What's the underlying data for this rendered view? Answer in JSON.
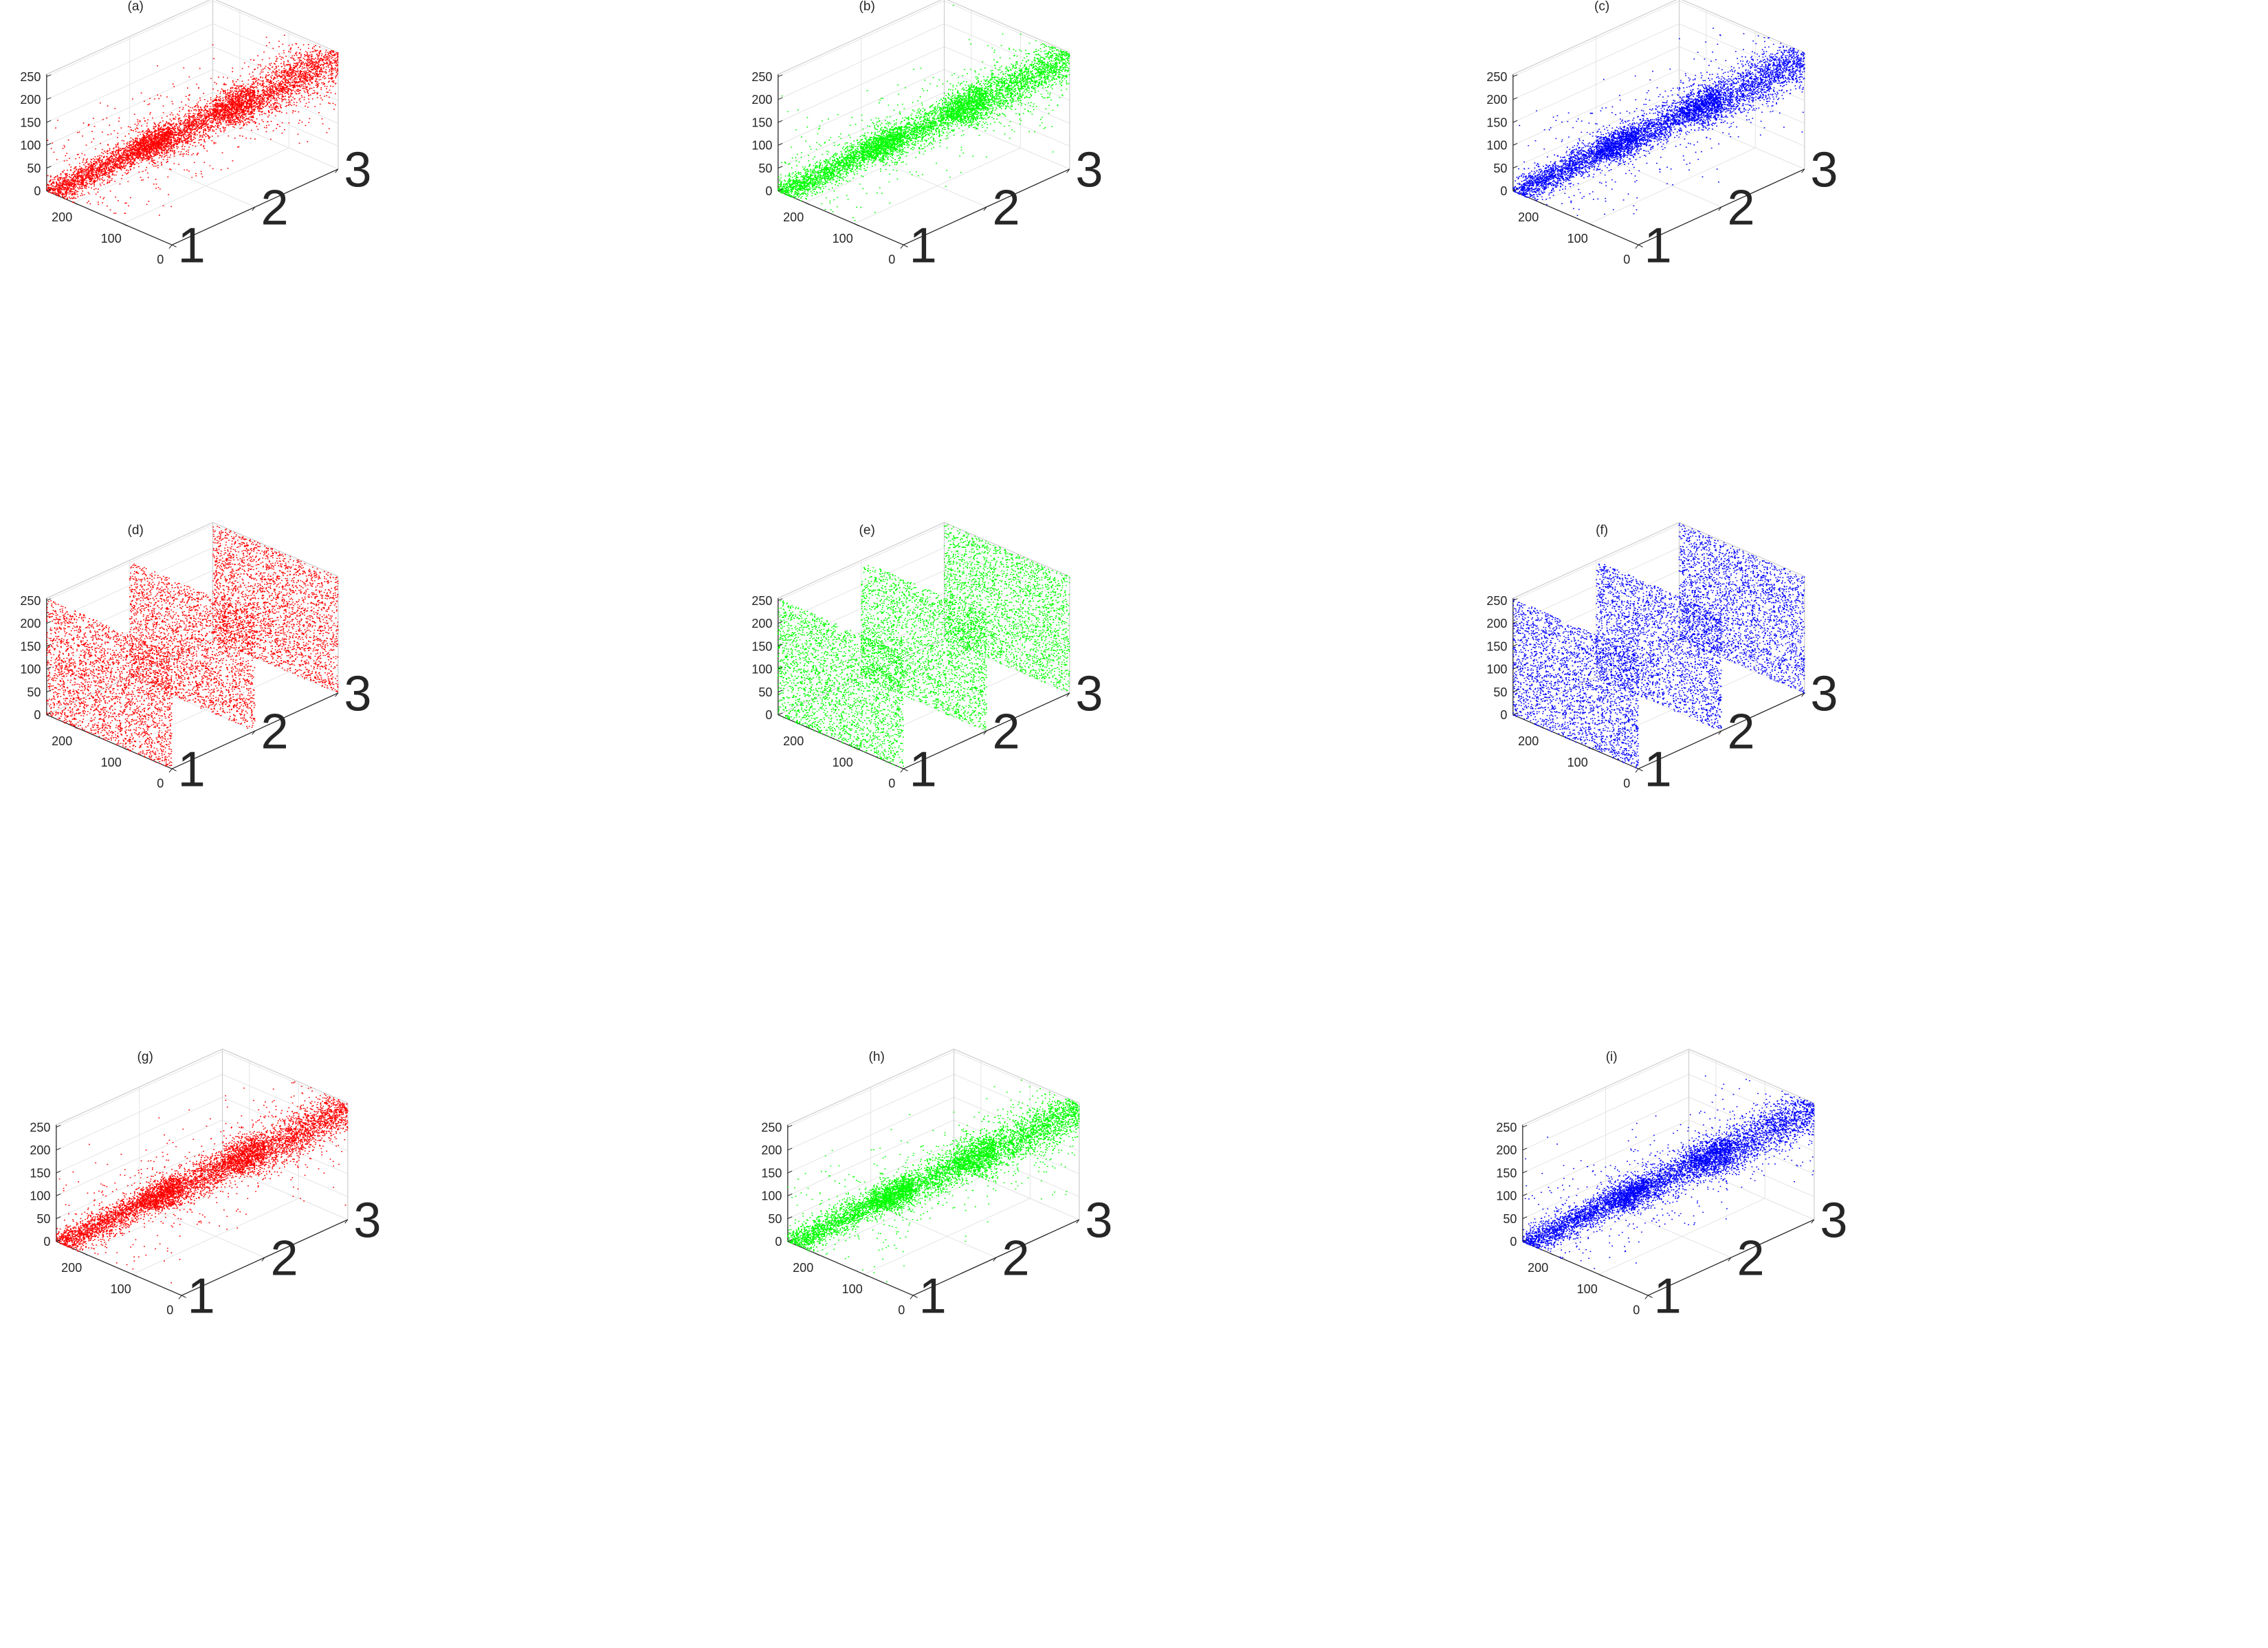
{
  "chart_data": [
    {
      "type": "scatter",
      "title": "(a)",
      "pattern": "correlated",
      "color": "#ff0000",
      "slices": [
        1,
        2,
        3
      ],
      "zlim": [
        0,
        250
      ],
      "zticks": [
        "0",
        "50",
        "100",
        "150",
        "200",
        "250"
      ],
      "yticks": [
        "0",
        "100",
        "200"
      ],
      "xticks": [
        "1",
        "2",
        "3"
      ],
      "grid": true
    },
    {
      "type": "scatter",
      "title": "(b)",
      "pattern": "correlated",
      "color": "#00ff00",
      "slices": [
        1,
        2,
        3
      ],
      "zlim": [
        0,
        250
      ],
      "zticks": [
        "0",
        "50",
        "100",
        "150",
        "200",
        "250"
      ],
      "yticks": [
        "0",
        "100",
        "200"
      ],
      "xticks": [
        "1",
        "2",
        "3"
      ],
      "grid": true
    },
    {
      "type": "scatter",
      "title": "(c)",
      "pattern": "correlated",
      "color": "#0000ff",
      "slices": [
        1,
        2,
        3
      ],
      "zlim": [
        0,
        250
      ],
      "zticks": [
        "0",
        "50",
        "100",
        "150",
        "200",
        "250"
      ],
      "yticks": [
        "0",
        "100",
        "200"
      ],
      "xticks": [
        "1",
        "2",
        "3"
      ],
      "grid": true
    },
    {
      "type": "scatter",
      "title": "(d)",
      "pattern": "uniform",
      "color": "#ff0000",
      "slices": [
        1,
        2,
        3
      ],
      "zlim": [
        0,
        250
      ],
      "zticks": [
        "0",
        "50",
        "100",
        "150",
        "200",
        "250"
      ],
      "yticks": [
        "0",
        "100",
        "200"
      ],
      "xticks": [
        "1",
        "2",
        "3"
      ],
      "grid": true
    },
    {
      "type": "scatter",
      "title": "(e)",
      "pattern": "uniform",
      "color": "#00ff00",
      "slices": [
        1,
        2,
        3
      ],
      "zlim": [
        0,
        250
      ],
      "zticks": [
        "0",
        "50",
        "100",
        "150",
        "200",
        "250"
      ],
      "yticks": [
        "0",
        "100",
        "200"
      ],
      "xticks": [
        "1",
        "2",
        "3"
      ],
      "grid": true
    },
    {
      "type": "scatter",
      "title": "(f)",
      "pattern": "uniform",
      "color": "#0000ff",
      "slices": [
        1,
        2,
        3
      ],
      "zlim": [
        0,
        250
      ],
      "zticks": [
        "0",
        "50",
        "100",
        "150",
        "200",
        "250"
      ],
      "yticks": [
        "0",
        "100",
        "200"
      ],
      "xticks": [
        "1",
        "2",
        "3"
      ],
      "grid": true
    },
    {
      "type": "scatter",
      "title": "(g)",
      "pattern": "correlated",
      "color": "#ff0000",
      "slices": [
        1,
        2,
        3
      ],
      "zlim": [
        0,
        250
      ],
      "zticks": [
        "0",
        "50",
        "100",
        "150",
        "200",
        "250"
      ],
      "yticks": [
        "0",
        "100",
        "200"
      ],
      "xticks": [
        "1",
        "2",
        "3"
      ],
      "grid": true
    },
    {
      "type": "scatter",
      "title": "(h)",
      "pattern": "correlated",
      "color": "#00ff00",
      "slices": [
        1,
        2,
        3
      ],
      "zlim": [
        0,
        250
      ],
      "zticks": [
        "0",
        "50",
        "100",
        "150",
        "200",
        "250"
      ],
      "yticks": [
        "0",
        "100",
        "200"
      ],
      "xticks": [
        "1",
        "2",
        "3"
      ],
      "grid": true
    },
    {
      "type": "scatter",
      "title": "(i)",
      "pattern": "correlated",
      "color": "#0000ff",
      "slices": [
        1,
        2,
        3
      ],
      "zlim": [
        0,
        250
      ],
      "zticks": [
        "0",
        "50",
        "100",
        "150",
        "200",
        "250"
      ],
      "yticks": [
        "0",
        "100",
        "200"
      ],
      "xticks": [
        "1",
        "2",
        "3"
      ],
      "grid": true
    }
  ]
}
